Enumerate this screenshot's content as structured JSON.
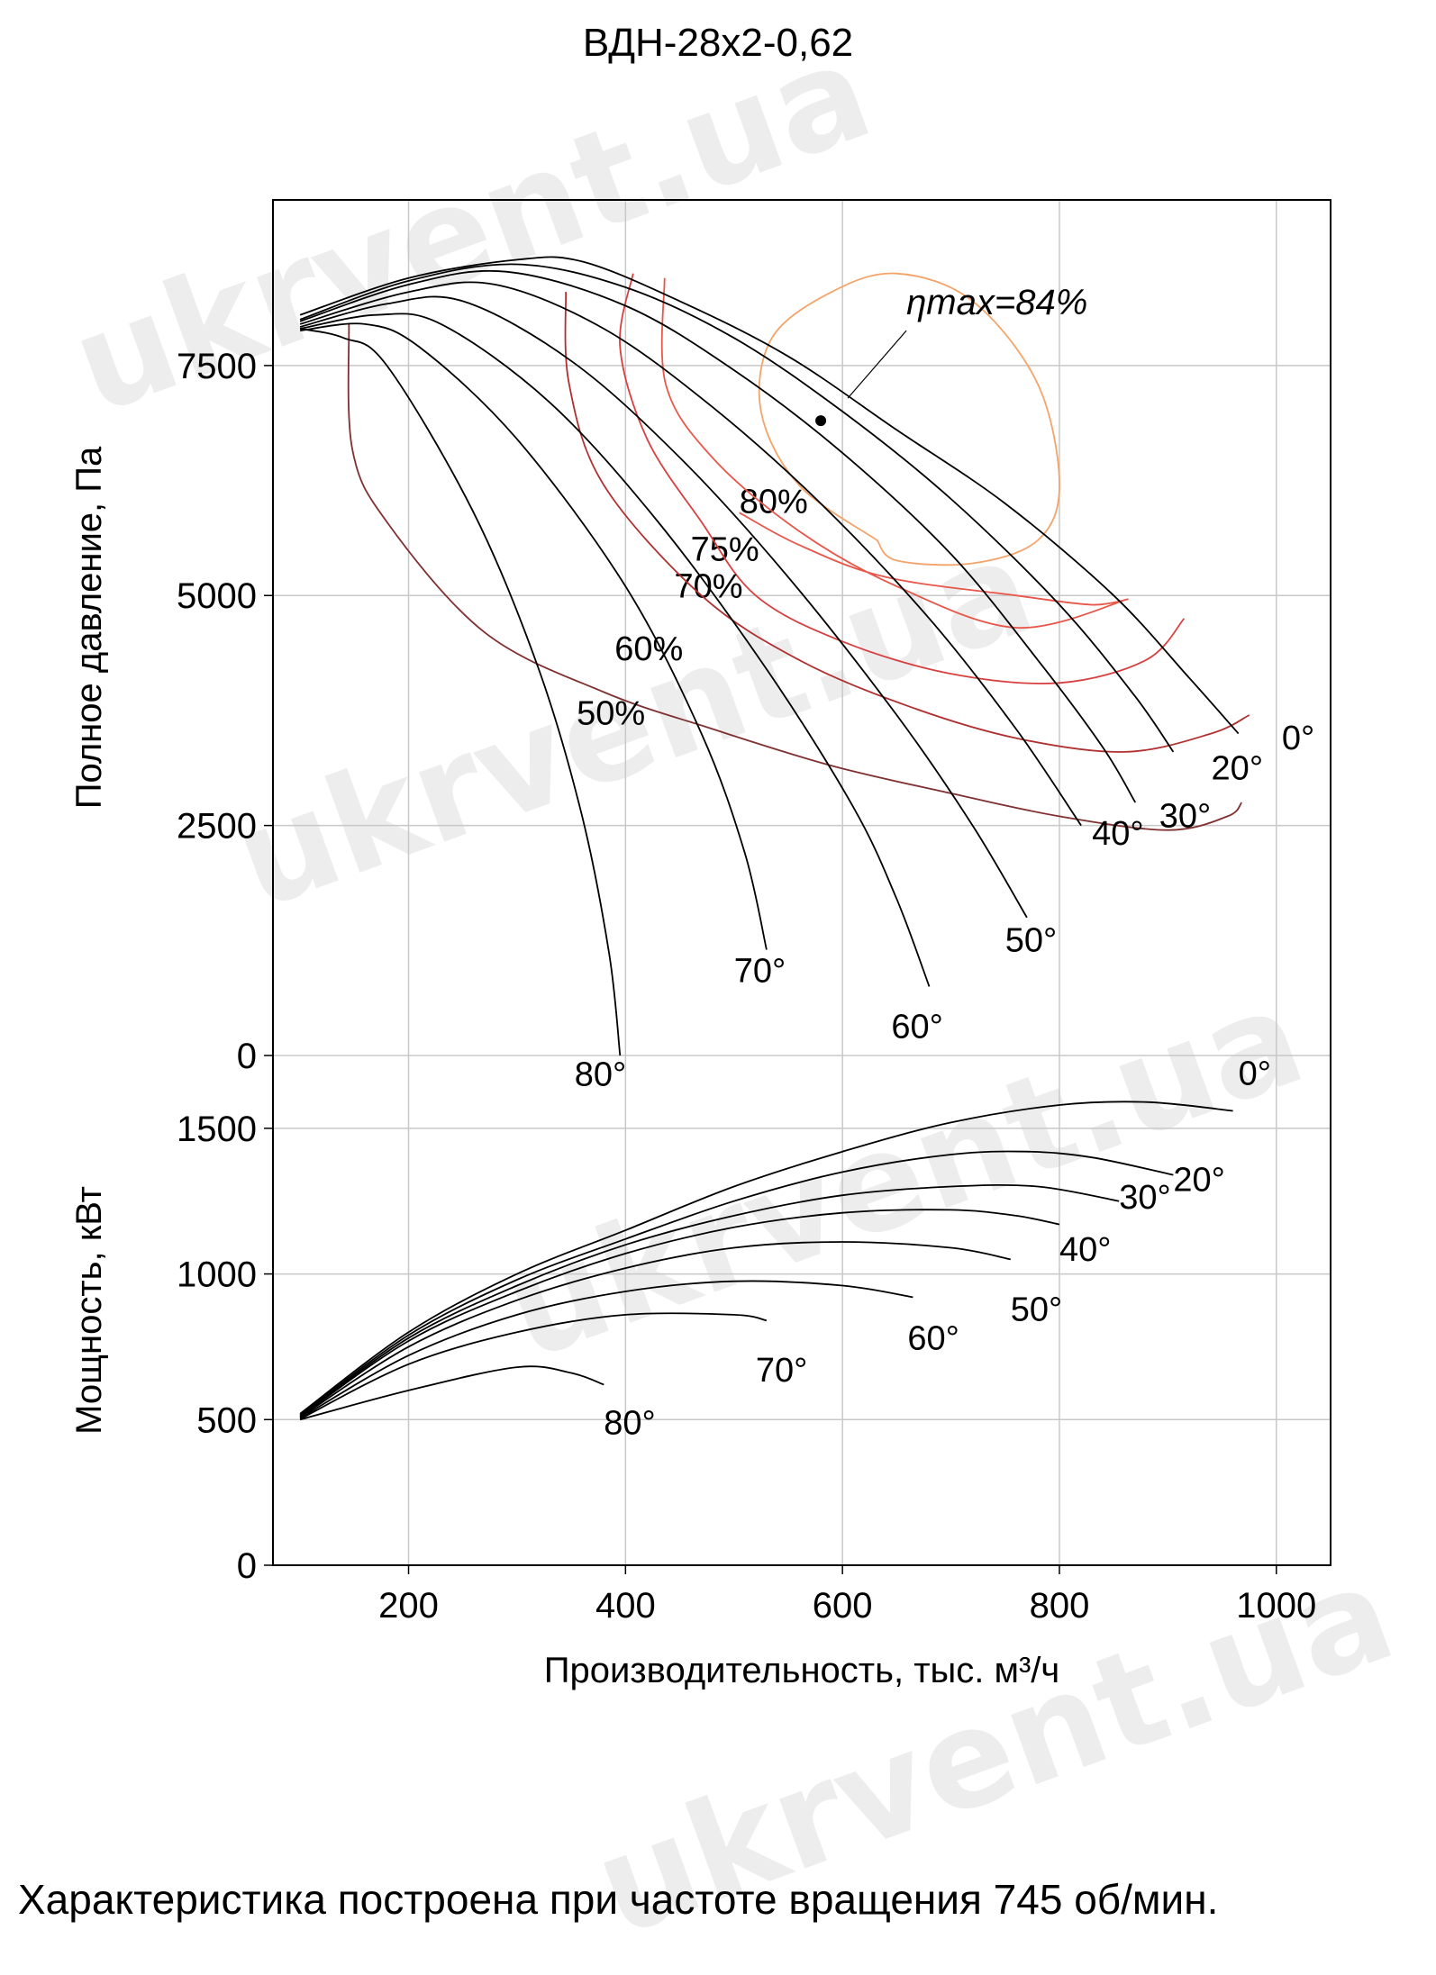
{
  "watermark": "ukrvent.ua",
  "note": "Характеристика построена при частоте вращения 745 об/мин.",
  "chart_data": [
    {
      "type": "line",
      "title": "ВДН-28х2-0,62",
      "ylabel": "Полное давление, Па",
      "xlabel": "Производительность, тыс. м³/ч",
      "xlim": [
        75,
        1050
      ],
      "ylim": [
        0,
        9300
      ],
      "yticks": [
        0,
        2500,
        5000,
        7500
      ],
      "xticks": [
        200,
        400,
        600,
        800,
        1000
      ],
      "grid": true,
      "eta_max_label": "ηmax=84%",
      "eta_max_point": [
        580,
        6900
      ],
      "series": [
        {
          "name": "0°",
          "label_at": [
            1005,
            3330
          ],
          "x": [
            100,
            200,
            300,
            360,
            450,
            550,
            650,
            750,
            850,
            920,
            965
          ],
          "y": [
            8050,
            8450,
            8650,
            8630,
            8200,
            7600,
            6800,
            6000,
            5000,
            4100,
            3500
          ]
        },
        {
          "name": "20°",
          "label_at": [
            940,
            3000
          ],
          "x": [
            100,
            200,
            300,
            400,
            500,
            600,
            700,
            800,
            870,
            905
          ],
          "y": [
            8000,
            8420,
            8600,
            8350,
            7800,
            7000,
            6050,
            4900,
            3900,
            3300
          ]
        },
        {
          "name": "30°",
          "label_at": [
            892,
            2480
          ],
          "x": [
            100,
            200,
            290,
            400,
            500,
            600,
            700,
            780,
            840,
            870
          ],
          "y": [
            7980,
            8380,
            8520,
            8150,
            7450,
            6550,
            5450,
            4300,
            3350,
            2750
          ]
        },
        {
          "name": "40°",
          "label_at": [
            830,
            2290
          ],
          "x": [
            100,
            200,
            280,
            380,
            480,
            580,
            680,
            760,
            820
          ],
          "y": [
            7950,
            8300,
            8380,
            7900,
            7050,
            6000,
            4750,
            3550,
            2500
          ]
        },
        {
          "name": "50°",
          "label_at": [
            750,
            1130
          ],
          "x": [
            100,
            180,
            250,
            350,
            450,
            550,
            650,
            720,
            770
          ],
          "y": [
            7920,
            8170,
            8200,
            7550,
            6500,
            5200,
            3700,
            2500,
            1500
          ]
        },
        {
          "name": "60°",
          "label_at": [
            645,
            190
          ],
          "x": [
            100,
            170,
            230,
            330,
            430,
            530,
            610,
            650,
            680
          ],
          "y": [
            7900,
            8050,
            7950,
            7100,
            5800,
            4200,
            2700,
            1700,
            750
          ]
        },
        {
          "name": "70°",
          "label_at": [
            500,
            800
          ],
          "x": [
            100,
            160,
            210,
            300,
            400,
            470,
            510,
            530
          ],
          "y": [
            7880,
            7950,
            7700,
            6700,
            5100,
            3500,
            2200,
            1150
          ]
        },
        {
          "name": "80°",
          "label_at": [
            353,
            -330
          ],
          "x": [
            100,
            140,
            180,
            260,
            320,
            360,
            385,
            395
          ],
          "y": [
            7900,
            7800,
            7500,
            5900,
            4200,
            2600,
            1100,
            0
          ]
        }
      ],
      "efficiency_contours": [
        {
          "name": "80%",
          "color": "#f4a46a",
          "label_at": [
            505,
            5900
          ],
          "x": [
            632,
            560,
            525,
            535,
            590,
            650,
            720,
            780,
            800,
            780,
            720,
            650,
            632
          ],
          "y": [
            5600,
            6200,
            7000,
            7800,
            8300,
            8500,
            8200,
            7300,
            6200,
            5600,
            5350,
            5380,
            5600
          ]
        },
        {
          "name": "75%",
          "color": "#e8574a",
          "label_at": [
            460,
            5380
          ],
          "x": [
            436,
            437,
            480,
            560,
            650,
            760,
            860,
            830,
            760,
            640,
            560,
            505
          ],
          "y": [
            8450,
            7300,
            6500,
            5700,
            5100,
            4650,
            4950,
            4900,
            5000,
            5200,
            5550,
            5900
          ]
        },
        {
          "name": "70%",
          "color": "#d84040",
          "label_at": [
            445,
            4980
          ],
          "x": [
            407,
            395,
            420,
            470,
            520,
            600,
            700,
            800,
            880,
            915
          ],
          "y": [
            8500,
            7700,
            6700,
            5800,
            5000,
            4500,
            4150,
            4050,
            4300,
            4750
          ]
        },
        {
          "name": "60%",
          "color": "#b03030",
          "label_at": [
            390,
            4300
          ],
          "x": [
            345,
            348,
            380,
            470,
            560,
            660,
            760,
            860,
            940,
            975
          ],
          "y": [
            8300,
            7300,
            6200,
            5000,
            4300,
            3800,
            3450,
            3300,
            3500,
            3700
          ]
        },
        {
          "name": "50%",
          "color": "#803030",
          "label_at": [
            355,
            3600
          ],
          "x": [
            145,
            148,
            180,
            270,
            380,
            480,
            590,
            700,
            800,
            900,
            955,
            968
          ],
          "y": [
            7950,
            6600,
            5800,
            4600,
            3950,
            3550,
            3150,
            2850,
            2600,
            2450,
            2600,
            2750
          ]
        }
      ]
    },
    {
      "type": "line",
      "ylabel": "Мощность, кВт",
      "xlabel": "Производительность, тыс. м³/ч",
      "xlim": [
        75,
        1050
      ],
      "ylim": [
        0,
        1750
      ],
      "yticks": [
        0,
        500,
        1000,
        1500
      ],
      "xticks": [
        200,
        400,
        600,
        800,
        1000
      ],
      "grid": true,
      "series": [
        {
          "name": "0°",
          "label_at": [
            965,
            1650
          ],
          "x": [
            100,
            200,
            300,
            400,
            500,
            600,
            700,
            800,
            880,
            960
          ],
          "y": [
            520,
            800,
            1000,
            1150,
            1300,
            1420,
            1520,
            1580,
            1590,
            1560
          ]
        },
        {
          "name": "20°",
          "label_at": [
            905,
            1285
          ],
          "x": [
            100,
            200,
            300,
            400,
            500,
            600,
            700,
            770,
            830,
            905
          ],
          "y": [
            515,
            790,
            980,
            1120,
            1250,
            1350,
            1410,
            1420,
            1400,
            1340
          ]
        },
        {
          "name": "30°",
          "label_at": [
            855,
            1225
          ],
          "x": [
            100,
            200,
            300,
            400,
            500,
            600,
            700,
            780,
            855
          ],
          "y": [
            512,
            780,
            960,
            1100,
            1200,
            1270,
            1300,
            1300,
            1250
          ]
        },
        {
          "name": "40°",
          "label_at": [
            800,
            1045
          ],
          "x": [
            100,
            200,
            300,
            400,
            500,
            600,
            700,
            760,
            800
          ],
          "y": [
            510,
            770,
            940,
            1070,
            1160,
            1210,
            1220,
            1200,
            1170
          ]
        },
        {
          "name": "50°",
          "label_at": [
            755,
            840
          ],
          "x": [
            100,
            200,
            300,
            400,
            500,
            600,
            700,
            755
          ],
          "y": [
            508,
            750,
            910,
            1020,
            1090,
            1110,
            1090,
            1050
          ]
        },
        {
          "name": "60°",
          "label_at": [
            660,
            740
          ],
          "x": [
            100,
            200,
            300,
            400,
            500,
            600,
            665
          ],
          "y": [
            505,
            720,
            860,
            940,
            975,
            960,
            920
          ]
        },
        {
          "name": "70°",
          "label_at": [
            520,
            630
          ],
          "x": [
            100,
            200,
            300,
            400,
            500,
            530
          ],
          "y": [
            502,
            690,
            800,
            860,
            860,
            840
          ]
        },
        {
          "name": "80°",
          "label_at": [
            380,
            450
          ],
          "x": [
            100,
            200,
            300,
            350,
            380
          ],
          "y": [
            500,
            600,
            680,
            660,
            620
          ]
        }
      ]
    }
  ]
}
